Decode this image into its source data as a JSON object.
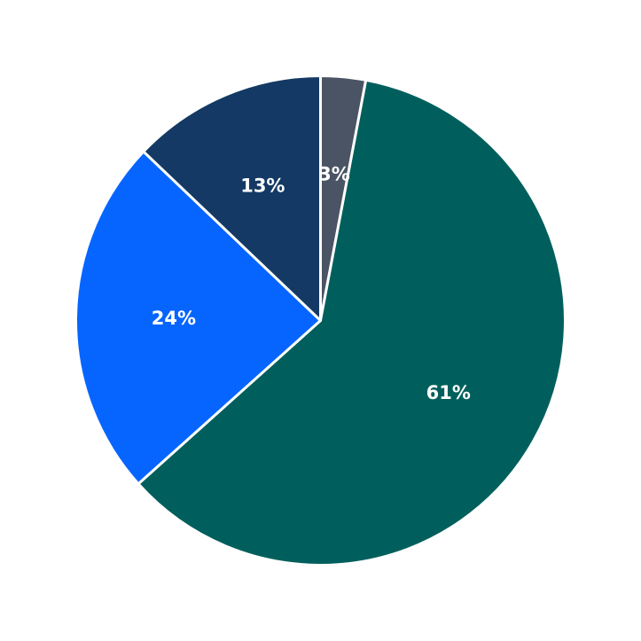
{
  "chart_data": {
    "type": "pie",
    "start_angle_deg": 90,
    "direction": "clockwise",
    "slices": [
      {
        "label": "3%",
        "value": 3,
        "color": "#4a5464"
      },
      {
        "label": "61%",
        "value": 61,
        "color": "#005f5c"
      },
      {
        "label": "24%",
        "value": 24,
        "color": "#0765ff"
      },
      {
        "label": "13%",
        "value": 13,
        "color": "#143964"
      }
    ],
    "edge_color": "#ffffff",
    "label_color": "#ffffff"
  }
}
